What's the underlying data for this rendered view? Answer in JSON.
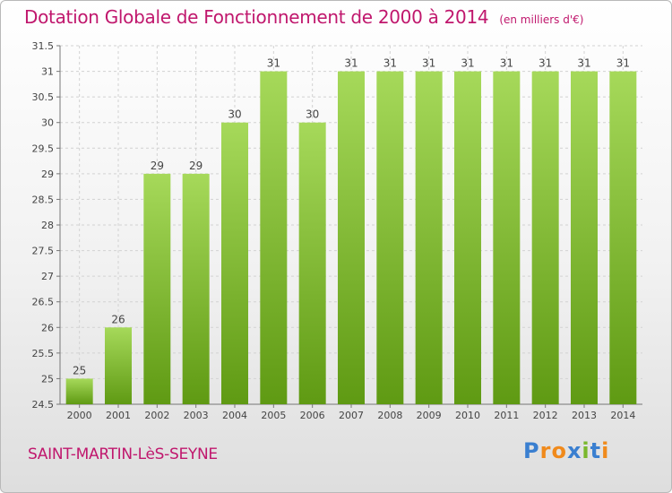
{
  "header": {
    "title": "Dotation Globale de Fonctionnement de 2000 à 2014",
    "subtitle": "(en milliers d'€)"
  },
  "footer": {
    "commune": "SAINT-MARTIN-LèS-SEYNE",
    "brand": "Proxiti"
  },
  "colors": {
    "accent": "#c0176d",
    "bar_light": "#a6d95a",
    "bar_dark": "#5f9a13",
    "grid": "#d2d2d2",
    "brand_letters": [
      "#3a7fd0",
      "#f08a1c",
      "#f08a1c",
      "#3a7fd0",
      "#7ab82d",
      "#3a7fd0",
      "#f08a1c"
    ]
  },
  "chart_data": {
    "type": "bar",
    "title": "Dotation Globale de Fonctionnement de 2000 à 2014",
    "subtitle": "(en milliers d'€)",
    "xlabel": "",
    "ylabel": "",
    "categories": [
      "2000",
      "2001",
      "2002",
      "2003",
      "2004",
      "2005",
      "2006",
      "2007",
      "2008",
      "2009",
      "2010",
      "2011",
      "2012",
      "2013",
      "2014"
    ],
    "values": [
      25,
      26,
      29,
      29,
      30,
      31,
      30,
      31,
      31,
      31,
      31,
      31,
      31,
      31,
      31
    ],
    "data_labels": [
      "25",
      "26",
      "29",
      "29",
      "30",
      "31",
      "30",
      "31",
      "31",
      "31",
      "31",
      "31",
      "31",
      "31",
      "31"
    ],
    "ylim": [
      24.5,
      31.5
    ],
    "yticks": [
      24.5,
      25,
      25.5,
      26,
      26.5,
      27,
      27.5,
      28,
      28.5,
      29,
      29.5,
      30,
      30.5,
      31,
      31.5
    ],
    "ytick_labels": [
      "24.5",
      "25",
      "25.5",
      "26",
      "26.5",
      "27",
      "27.5",
      "28",
      "28.5",
      "29",
      "29.5",
      "30",
      "30.5",
      "31",
      "31.5"
    ],
    "grid": true,
    "legend": "none"
  }
}
